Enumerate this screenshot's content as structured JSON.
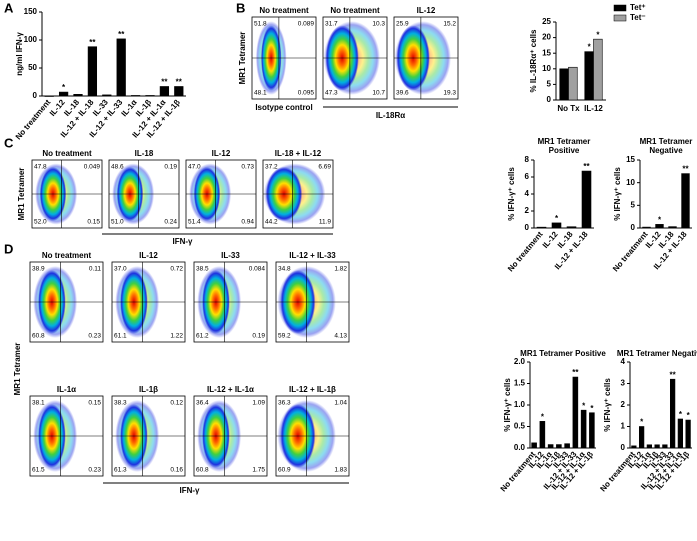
{
  "panel_labels": [
    "A",
    "B",
    "C",
    "D"
  ],
  "chart_data": [
    {
      "type": "bar",
      "y_label": "ng/ml IFN-γ",
      "color": "#000000",
      "categories": [
        "No treatment",
        "IL-12",
        "IL-18",
        "IL-12 + IL-18",
        "IL-33",
        "IL-12 + IL-33",
        "IL-1α",
        "IL-1β",
        "IL-12 + IL-1α",
        "IL-12 + IL-1β"
      ],
      "values": [
        0,
        7,
        3,
        88,
        2,
        102,
        1,
        1,
        17,
        17
      ],
      "significance": [
        null,
        "*",
        null,
        "**",
        null,
        "**",
        null,
        null,
        "**",
        "**"
      ],
      "ylim": [
        0,
        150
      ],
      "yticks": [
        0,
        50,
        100,
        150
      ]
    },
    {
      "type": "grouped_bar",
      "y_label": "% IL-18Rα⁺ cells",
      "legend": "top-right",
      "categories": [
        "No Tx",
        "IL-12"
      ],
      "series": [
        {
          "name": "Tet⁺",
          "color": "#000000",
          "values": [
            10,
            15.5
          ],
          "significance": [
            null,
            "*"
          ]
        },
        {
          "name": "Tet⁻",
          "color": "#a0a0a0",
          "values": [
            10.5,
            19.5
          ],
          "significance": [
            null,
            "*"
          ]
        }
      ],
      "ylim": [
        0,
        25
      ],
      "yticks": [
        0,
        5,
        10,
        15,
        20,
        25
      ]
    },
    {
      "type": "bar",
      "title": "MR1 Tetramer",
      "subtitle": "Positive",
      "y_label": "% IFN-γ⁺ cells",
      "color": "#000000",
      "categories": [
        "No treatment",
        "IL-12",
        "IL-18",
        "IL-12 + IL-18"
      ],
      "values": [
        0.1,
        0.6,
        0.15,
        6.7
      ],
      "significance": [
        null,
        "*",
        null,
        "**"
      ],
      "ylim": [
        0,
        8
      ],
      "yticks": [
        0,
        2,
        4,
        6,
        8
      ]
    },
    {
      "type": "bar",
      "title": "MR1 Tetramer",
      "subtitle": "Negative",
      "y_label": "% IFN-γ⁺ cells",
      "color": "#000000",
      "categories": [
        "No treatment",
        "IL-12",
        "IL-18",
        "IL-12 + IL-18"
      ],
      "values": [
        0.2,
        0.8,
        0.3,
        12
      ],
      "significance": [
        null,
        "*",
        null,
        "**"
      ],
      "ylim": [
        0,
        15
      ],
      "yticks": [
        0,
        5,
        10,
        15
      ]
    },
    {
      "type": "bar",
      "title": "MR1 Tetramer Positive",
      "y_label": "% IFN-γ⁺ cells",
      "color": "#000000",
      "categories": [
        "No treatment",
        "IL-12",
        "IL-1α",
        "IL-1β",
        "IL-33",
        "IL-12 + IL-33",
        "IL-12 + IL-1α",
        "IL-12 + IL-1β"
      ],
      "values": [
        0.12,
        0.62,
        0.08,
        0.08,
        0.1,
        1.65,
        0.88,
        0.82
      ],
      "significance": [
        null,
        "*",
        null,
        null,
        null,
        "**",
        "*",
        "*"
      ],
      "ylim": [
        0,
        2
      ],
      "yticks": [
        {
          "value": 0,
          "label": "0.0"
        },
        0.5,
        {
          "value": 1,
          "label": "1.0"
        },
        1.5,
        {
          "value": 2,
          "label": "2.0"
        }
      ]
    },
    {
      "type": "bar",
      "title": "MR1 Tetramer Negative",
      "y_label": "% IFN-γ⁺ cells",
      "color": "#000000",
      "categories": [
        "No treatment",
        "IL-12",
        "IL-1α",
        "IL-1β",
        "IL-33",
        "IL-12 + IL-33",
        "IL-12 + IL-1α",
        "IL-12 + IL-1β"
      ],
      "values": [
        0.1,
        1.0,
        0.15,
        0.15,
        0.15,
        3.2,
        1.35,
        1.3
      ],
      "significance": [
        null,
        "*",
        null,
        null,
        null,
        "**",
        "*",
        "*"
      ],
      "ylim": [
        0,
        4
      ],
      "yticks": [
        0,
        1,
        2,
        3,
        4
      ]
    }
  ],
  "flow_panels": {
    "B": {
      "y_label": "MR1 Tetramer",
      "x_labels": [
        "Isotype control",
        "IL-18Rα"
      ],
      "plots": [
        {
          "title": "No treatment",
          "quadrants": [
            "51.8",
            "0.089",
            "48.1",
            "0.095"
          ]
        },
        {
          "title": "No treatment",
          "quadrants": [
            "31.7",
            "10.3",
            "47.3",
            "10.7"
          ]
        },
        {
          "title": "IL-12",
          "quadrants": [
            "25.9",
            "15.2",
            "39.6",
            "19.3"
          ]
        }
      ]
    },
    "C": {
      "y_label": "MR1 Tetramer",
      "x_label": "IFN-γ",
      "plots": [
        {
          "title": "No treatment",
          "quadrants": [
            "47.8",
            "0.049",
            "52.0",
            "0.15"
          ]
        },
        {
          "title": "IL-18",
          "quadrants": [
            "48.6",
            "0.19",
            "51.0",
            "0.24"
          ]
        },
        {
          "title": "IL-12",
          "quadrants": [
            "47.0",
            "0.73",
            "51.4",
            "0.94"
          ]
        },
        {
          "title": "IL-18 + IL-12",
          "quadrants": [
            "37.2",
            "6.69",
            "44.2",
            "11.9"
          ]
        }
      ]
    },
    "D": {
      "y_label": "MR1 Tetramer",
      "x_label": "IFN-γ",
      "plots": [
        {
          "title": "No treatment",
          "quadrants": [
            "38.9",
            "0.11",
            "60.8",
            "0.23"
          ]
        },
        {
          "title": "IL-12",
          "quadrants": [
            "37.0",
            "0.72",
            "61.1",
            "1.22"
          ]
        },
        {
          "title": "IL-33",
          "quadrants": [
            "38.5",
            "0.084",
            "61.2",
            "0.19"
          ]
        },
        {
          "title": "IL-12 + IL-33",
          "quadrants": [
            "34.8",
            "1.82",
            "59.2",
            "4.13"
          ]
        },
        {
          "title": "IL-1α",
          "quadrants": [
            "38.1",
            "0.15",
            "61.5",
            "0.23"
          ]
        },
        {
          "title": "IL-1β",
          "quadrants": [
            "38.3",
            "0.12",
            "61.3",
            "0.16"
          ]
        },
        {
          "title": "IL-12 + IL-1α",
          "quadrants": [
            "36.4",
            "1.09",
            "60.8",
            "1.75"
          ]
        },
        {
          "title": "IL-12 + IL-1β",
          "quadrants": [
            "36.3",
            "1.04",
            "60.9",
            "1.83"
          ]
        }
      ]
    }
  }
}
